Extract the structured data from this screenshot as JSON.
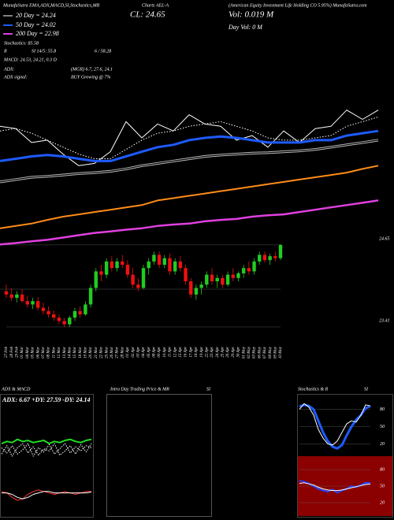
{
  "header": {
    "top_left": "MunafaSutra EMA,ADX,MACD,SI,Stochastics,MR",
    "top_mid": "Charts AEL-A",
    "top_right": "(American Equity Investment Life Holding CO 5.95%) MunafaSutra.com",
    "close": "CL: 24.65",
    "volume": "Vol: 0.019 M",
    "day_volume": "Day Vol: 0 M",
    "legend_20": "20 Day = 24.24",
    "legend_50": "50 Day = 24.02",
    "legend_200": "200 Day = 22.98",
    "stochastics": "Stochastics: 85.58",
    "rsi_r": "R",
    "rsi_si": "SI 14/5: 55.8",
    "rsi_extra": "6 / 58.28",
    "macd": "MACD: 24.53, 24.21, 0.3 D",
    "adx": "ADX:",
    "adx_values": "(MGR) 6.7, 27.6, 24.1",
    "adx_signal": "ADX signal:",
    "adx_signal_value": "BUY Growing @ 7%",
    "panel_adx": "ADX & MACD",
    "panel_intraday": "Intra Day Trading Price & MR",
    "panel_intraday_si": "SI",
    "panel_stoch": "Stochastics & R",
    "panel_stoch_si": "SI",
    "adx_inner": "ADX: 6.67 +DY: 27.59 -DY: 24.14"
  },
  "chart_data": [
    {
      "type": "line",
      "ylim": [
        21.5,
        24.9
      ],
      "series": [
        {
          "color": "#ffffff",
          "values": [
            24.3,
            24.25,
            23.95,
            24.0,
            23.7,
            23.45,
            23.5,
            23.75,
            24.4,
            24.05,
            24.35,
            24.2,
            24.55,
            24.35,
            24.3,
            24.0,
            24.1,
            23.85,
            24.2,
            23.95,
            24.25,
            24.3,
            24.65,
            24.45,
            24.65
          ]
        },
        {
          "color": "#ffffff",
          "dash": "1.5 2",
          "values": [
            24.2,
            24.25,
            24.15,
            24.0,
            23.85,
            23.7,
            23.6,
            23.6,
            23.8,
            24.0,
            24.15,
            24.2,
            24.3,
            24.35,
            24.4,
            24.3,
            24.2,
            24.05,
            24.0,
            24.0,
            24.05,
            24.1,
            24.3,
            24.4,
            24.5
          ]
        },
        {
          "color": "#1e5bff",
          "width": 3,
          "values": [
            23.55,
            23.6,
            23.65,
            23.68,
            23.65,
            23.6,
            23.55,
            23.55,
            23.65,
            23.75,
            23.85,
            23.9,
            24.0,
            24.05,
            24.08,
            24.05,
            24.0,
            23.95,
            23.95,
            23.95,
            24.0,
            24.0,
            24.1,
            24.15,
            24.2
          ]
        },
        {
          "color": "#bbbbbb",
          "double": true,
          "values": [
            23.1,
            23.15,
            23.2,
            23.22,
            23.25,
            23.28,
            23.3,
            23.33,
            23.38,
            23.45,
            23.5,
            23.55,
            23.6,
            23.65,
            23.68,
            23.7,
            23.72,
            23.73,
            23.75,
            23.77,
            23.8,
            23.85,
            23.9,
            23.95,
            24.0
          ]
        },
        {
          "color": "#ff8c1a",
          "width": 2,
          "values": [
            22.1,
            22.15,
            22.2,
            22.28,
            22.35,
            22.4,
            22.45,
            22.5,
            22.55,
            22.6,
            22.7,
            22.75,
            22.8,
            22.85,
            22.9,
            22.95,
            23.0,
            23.05,
            23.1,
            23.15,
            23.2,
            23.25,
            23.3,
            23.38,
            23.45
          ]
        },
        {
          "color": "#e040e0",
          "width": 2.5,
          "values": [
            21.75,
            21.78,
            21.82,
            21.85,
            21.9,
            21.95,
            22.0,
            22.03,
            22.07,
            22.1,
            22.15,
            22.18,
            22.2,
            22.25,
            22.28,
            22.3,
            22.35,
            22.38,
            22.4,
            22.45,
            22.5,
            22.55,
            22.6,
            22.65,
            22.7
          ]
        }
      ]
    },
    {
      "type": "candlestick",
      "up_color": "#22cc22",
      "down_color": "#ee1111",
      "ylim": [
        23.35,
        24.72
      ],
      "yticks": [
        24.65,
        23.41
      ],
      "categories": [
        "27 Feb",
        "28 Feb",
        "29 Feb",
        "01 Mar",
        "04 Mar",
        "05 Mar",
        "06 Mar",
        "07 Mar",
        "08 Mar",
        "11 Mar",
        "12 Mar",
        "13 Mar",
        "14 Mar",
        "15 Mar",
        "18 Mar",
        "19 Mar",
        "20 Mar",
        "21 Mar",
        "22 Mar",
        "25 Mar",
        "26 Mar",
        "27 Mar",
        "28 Mar",
        "01 Apr",
        "02 Apr",
        "03 Apr",
        "04 Apr",
        "05 Apr",
        "08 Apr",
        "09 Apr",
        "10 Apr",
        "11 Apr",
        "12 Apr",
        "15 Apr",
        "16 Apr",
        "17 Apr",
        "18 Apr",
        "19 Apr",
        "22 Apr",
        "23 Apr",
        "24 Apr",
        "25 Apr",
        "26 Apr",
        "29 Apr",
        "30 Apr",
        "01 May",
        "02 May",
        "03 May",
        "06 May",
        "07 May",
        "08 May",
        "09 May",
        "10 May"
      ],
      "open": [
        23.95,
        23.9,
        23.85,
        23.9,
        23.8,
        23.75,
        23.8,
        23.7,
        23.65,
        23.6,
        23.55,
        23.5,
        23.45,
        23.55,
        23.65,
        23.6,
        23.75,
        24.0,
        24.25,
        24.2,
        24.4,
        24.3,
        24.4,
        24.35,
        24.2,
        24.05,
        24.0,
        24.3,
        24.4,
        24.5,
        24.35,
        24.45,
        24.25,
        24.4,
        24.3,
        24.1,
        23.9,
        24.0,
        24.05,
        24.2,
        24.1,
        24.15,
        24.05,
        24.2,
        24.15,
        24.22,
        24.3,
        24.25,
        24.4,
        24.5,
        24.42,
        24.48,
        24.45
      ],
      "high": [
        24.05,
        24.0,
        23.95,
        23.98,
        23.88,
        23.85,
        23.86,
        23.78,
        23.72,
        23.66,
        23.6,
        23.55,
        23.58,
        23.7,
        23.72,
        23.8,
        24.05,
        24.3,
        24.35,
        24.45,
        24.48,
        24.45,
        24.5,
        24.42,
        24.3,
        24.15,
        24.35,
        24.45,
        24.55,
        24.55,
        24.5,
        24.52,
        24.45,
        24.48,
        24.35,
        24.15,
        24.05,
        24.1,
        24.25,
        24.3,
        24.2,
        24.2,
        24.25,
        24.3,
        24.25,
        24.35,
        24.4,
        24.45,
        24.55,
        24.55,
        24.52,
        24.55,
        24.66
      ],
      "low": [
        23.85,
        23.8,
        23.78,
        23.78,
        23.7,
        23.68,
        23.66,
        23.6,
        23.55,
        23.5,
        23.45,
        23.41,
        23.41,
        23.5,
        23.55,
        23.58,
        23.7,
        23.95,
        24.1,
        24.15,
        24.25,
        24.25,
        24.3,
        24.15,
        24.0,
        23.95,
        23.98,
        24.2,
        24.35,
        24.3,
        24.3,
        24.2,
        24.2,
        24.25,
        24.05,
        23.85,
        23.82,
        23.9,
        24.0,
        24.05,
        24.0,
        24.0,
        24.02,
        24.1,
        24.1,
        24.15,
        24.2,
        24.2,
        24.35,
        24.38,
        24.35,
        24.4,
        24.42
      ],
      "close": [
        23.9,
        23.85,
        23.9,
        23.8,
        23.75,
        23.8,
        23.7,
        23.65,
        23.6,
        23.55,
        23.5,
        23.45,
        23.55,
        23.65,
        23.6,
        23.75,
        24.0,
        24.25,
        24.2,
        24.4,
        24.3,
        24.4,
        24.35,
        24.2,
        24.05,
        24.0,
        24.3,
        24.4,
        24.5,
        24.35,
        24.45,
        24.25,
        24.4,
        24.3,
        24.1,
        23.9,
        24.0,
        24.05,
        24.2,
        24.1,
        24.15,
        24.05,
        24.2,
        24.15,
        24.22,
        24.3,
        24.25,
        24.4,
        24.5,
        24.42,
        24.48,
        24.45,
        24.65
      ]
    },
    {
      "type": "line",
      "ylim": [
        0,
        60
      ],
      "series": [
        {
          "color": "#22dd22",
          "width": 2,
          "values": [
            24,
            26,
            25,
            28,
            26,
            27,
            25,
            26,
            27,
            24,
            26,
            25,
            27,
            28,
            26,
            25,
            27,
            28
          ]
        },
        {
          "color": "#ffffff",
          "dash": "1.5 1.5",
          "values": [
            20,
            15,
            22,
            14,
            18,
            24,
            12,
            20,
            16,
            23,
            14,
            19,
            24,
            15,
            21,
            17,
            22,
            20
          ]
        },
        {
          "color": "#ffffff",
          "dash": "1.5 1.5",
          "values": [
            14,
            22,
            12,
            20,
            24,
            15,
            21,
            13,
            19,
            17,
            24,
            13,
            17,
            22,
            14,
            23,
            16,
            24
          ]
        }
      ]
    },
    {
      "type": "line",
      "ylim": [
        -0.6,
        0.6
      ],
      "series": [
        {
          "color": "#ff3333",
          "values": [
            0.1,
            0.05,
            -0.1,
            -0.2,
            -0.15,
            0,
            0.1,
            0.15,
            0.1,
            0.05,
            0,
            0.05,
            0.1,
            0.05,
            0,
            0.05,
            0.1,
            0.1
          ]
        },
        {
          "color": "#ffffff",
          "values": [
            0.05,
            0.05,
            0,
            -0.1,
            -0.15,
            -0.1,
            0,
            0.05,
            0.1,
            0.1,
            0.05,
            0.05,
            0.05,
            0.05,
            0.05,
            0.05,
            0.05,
            0.08
          ]
        }
      ]
    },
    {
      "type": "line",
      "ylim": [
        0,
        100
      ],
      "yticks": [
        80,
        50,
        20
      ],
      "background": "#000000",
      "series": [
        {
          "color": "#1e5bff",
          "width": 3,
          "values": [
            85,
            88,
            86,
            80,
            60,
            40,
            25,
            15,
            12,
            18,
            35,
            50,
            62,
            70,
            82,
            85.58
          ]
        },
        {
          "color": "#ffffff",
          "values": [
            80,
            90,
            84,
            70,
            45,
            30,
            20,
            18,
            25,
            40,
            55,
            60,
            58,
            70,
            88,
            86
          ]
        }
      ]
    },
    {
      "type": "line",
      "ylim": [
        0,
        100
      ],
      "yticks": [
        80,
        50,
        20
      ],
      "background": "#8b0000",
      "series": [
        {
          "color": "#2244ff",
          "width": 2,
          "values": [
            60,
            58,
            55,
            50,
            45,
            42,
            40,
            44,
            38,
            42,
            45,
            50,
            48,
            52,
            56,
            55.8
          ]
        },
        {
          "color": "#ffffff",
          "values": [
            55,
            56,
            54,
            52,
            48,
            45,
            43,
            42,
            42,
            43,
            45,
            47,
            49,
            51,
            53,
            54
          ]
        }
      ]
    }
  ]
}
